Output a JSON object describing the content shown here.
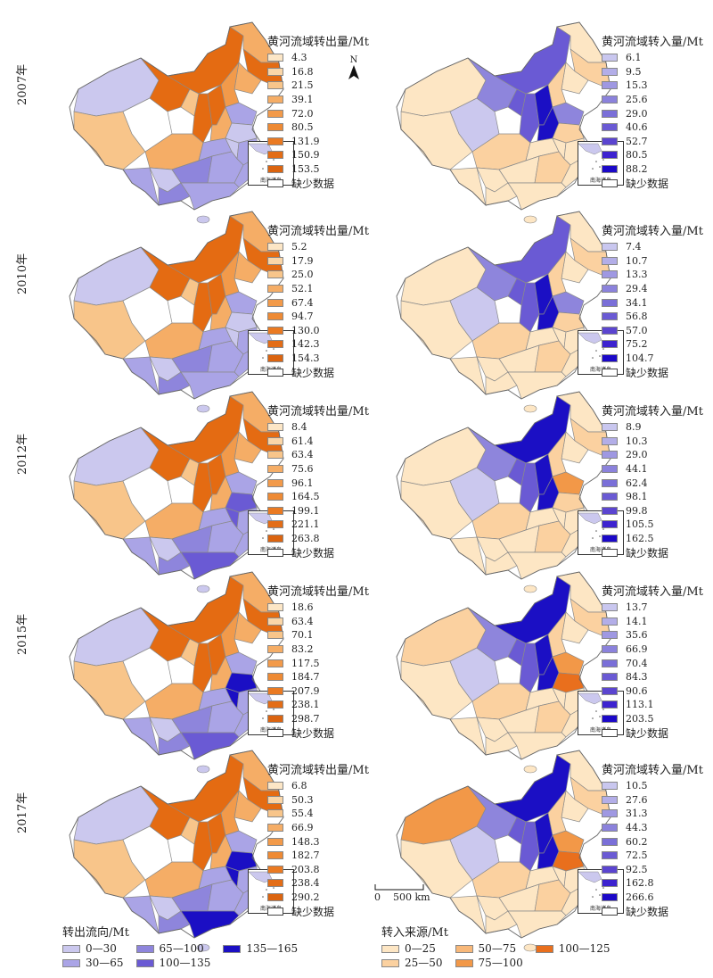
{
  "years": [
    "2007年",
    "2010年",
    "2012年",
    "2015年",
    "2017年"
  ],
  "out_title": "黄河流域转出量/Mt",
  "in_title": "黄河流域转入量/Mt",
  "out_values": [
    [
      "4.3",
      "16.8",
      "21.5",
      "39.1",
      "72.0",
      "80.5",
      "131.9",
      "150.9",
      "153.5"
    ],
    [
      "5.2",
      "17.9",
      "25.0",
      "52.1",
      "67.4",
      "94.7",
      "130.0",
      "142.3",
      "154.3"
    ],
    [
      "8.4",
      "61.4",
      "63.4",
      "75.6",
      "96.1",
      "164.5",
      "199.1",
      "221.1",
      "263.8"
    ],
    [
      "18.6",
      "63.4",
      "70.1",
      "83.2",
      "117.5",
      "184.7",
      "207.9",
      "238.1",
      "298.7"
    ],
    [
      "6.8",
      "50.3",
      "55.4",
      "66.9",
      "148.3",
      "182.7",
      "203.8",
      "238.4",
      "290.2"
    ]
  ],
  "in_values": [
    [
      "6.1",
      "9.5",
      "15.3",
      "25.6",
      "29.0",
      "40.6",
      "52.7",
      "80.5",
      "88.2"
    ],
    [
      "7.4",
      "10.7",
      "13.3",
      "29.4",
      "34.1",
      "56.8",
      "57.0",
      "75.2",
      "104.7"
    ],
    [
      "8.9",
      "10.3",
      "29.0",
      "44.1",
      "62.4",
      "98.1",
      "99.8",
      "105.5",
      "162.5"
    ],
    [
      "13.7",
      "14.1",
      "35.6",
      "66.9",
      "70.4",
      "84.3",
      "90.6",
      "113.1",
      "203.5"
    ],
    [
      "10.5",
      "27.6",
      "31.3",
      "44.3",
      "60.2",
      "72.5",
      "92.5",
      "162.8",
      "266.6"
    ]
  ],
  "missing_label": "缺少数据",
  "inset_label": "南海诸岛",
  "north_label": "N",
  "scale_label": "0    500 km",
  "out_swatch_colors": [
    "#fce6c6",
    "#fad6a8",
    "#f8c58a",
    "#f5ad66",
    "#f29a4a",
    "#ee8a34",
    "#ea7a22",
    "#e36d17",
    "#db6410"
  ],
  "in_swatch_colors": [
    "#c9c7ef",
    "#b3aee8",
    "#9f98e2",
    "#8b82dc",
    "#7a6fd8",
    "#6a5ad4",
    "#5b45d0",
    "#3d23d0",
    "#1b08c8"
  ],
  "flow_out_legend": {
    "title": "转出流向/Mt",
    "items": [
      {
        "label": "0—30",
        "color": "#cbc8ee"
      },
      {
        "label": "65—100",
        "color": "#8e85dc"
      },
      {
        "label": "135—165",
        "color": "#1b0fc4"
      },
      {
        "label": "30—65",
        "color": "#aaa4e6"
      },
      {
        "label": "100—135",
        "color": "#6a5ad4"
      }
    ]
  },
  "flow_in_legend": {
    "title": "转入来源/Mt",
    "items": [
      {
        "label": "0—25",
        "color": "#fde6c4"
      },
      {
        "label": "50—75",
        "color": "#f8b879"
      },
      {
        "label": "100—125",
        "color": "#e96f1d"
      },
      {
        "label": "25—50",
        "color": "#fbd1a0"
      },
      {
        "label": "75—100",
        "color": "#f29848"
      }
    ]
  }
}
